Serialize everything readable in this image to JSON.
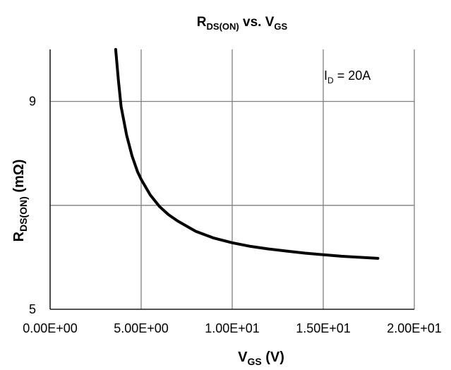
{
  "chart_data": {
    "type": "line",
    "title": {
      "main": "R",
      "sub": "DS(ON)",
      "rest": " vs. V",
      "rest_sub": "GS"
    },
    "xlabel": {
      "main": "V",
      "sub": "GS",
      "rest": " (V)"
    },
    "ylabel": {
      "main": "R",
      "sub": "DS(ON)",
      "rest": " (mΩ)"
    },
    "xlim": [
      0,
      20
    ],
    "ylim": [
      5,
      10
    ],
    "x_ticks": [
      {
        "value": 0,
        "label": "0.00E+00"
      },
      {
        "value": 5,
        "label": "5.00E+00"
      },
      {
        "value": 10,
        "label": "1.00E+01"
      },
      {
        "value": 15,
        "label": "1.50E+01"
      },
      {
        "value": 20,
        "label": "2.00E+01"
      }
    ],
    "y_ticks": [
      {
        "value": 5,
        "label": "5"
      },
      {
        "value": 9,
        "label": "9"
      }
    ],
    "y_gridlines": [
      5,
      7,
      9
    ],
    "x_gridlines": [
      0,
      5,
      10,
      15,
      20
    ],
    "grid": true,
    "annotation": {
      "main": "I",
      "sub": "D",
      "rest": " = 20A",
      "placement": "top-right"
    },
    "line_color": "#000000",
    "grid_color": "#808080",
    "series": [
      {
        "x": [
          3.6,
          3.75,
          3.9,
          4.2,
          4.5,
          4.8,
          5.0,
          5.5,
          6.0,
          6.5,
          7.0,
          8.0,
          9.0,
          10.0,
          11.0,
          12.0,
          13.0,
          14.0,
          15.0,
          16.0,
          17.0,
          18.0
        ],
        "y": [
          10.0,
          9.4,
          8.9,
          8.35,
          7.95,
          7.65,
          7.5,
          7.2,
          6.98,
          6.82,
          6.7,
          6.5,
          6.37,
          6.28,
          6.21,
          6.16,
          6.12,
          6.08,
          6.05,
          6.02,
          6.0,
          5.98
        ]
      }
    ]
  }
}
